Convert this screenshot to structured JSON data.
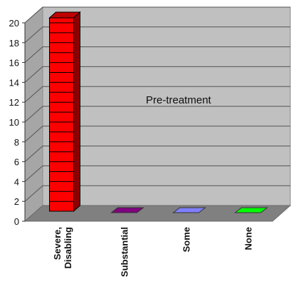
{
  "chart_data": {
    "type": "bar",
    "categories": [
      [
        "Severe,",
        "Disabling"
      ],
      [
        "Substantial"
      ],
      [
        "Some"
      ],
      [
        "None"
      ]
    ],
    "values": [
      20.5,
      0,
      0,
      0
    ],
    "colors": [
      "#ff0000",
      "#800080",
      "#8080ff",
      "#00ff00"
    ],
    "ylim": [
      0,
      20
    ],
    "yticks": [
      0,
      2,
      4,
      6,
      8,
      10,
      12,
      14,
      16,
      18,
      20
    ],
    "annotation": "Pre-treatment",
    "grid": true,
    "three_d": true
  }
}
